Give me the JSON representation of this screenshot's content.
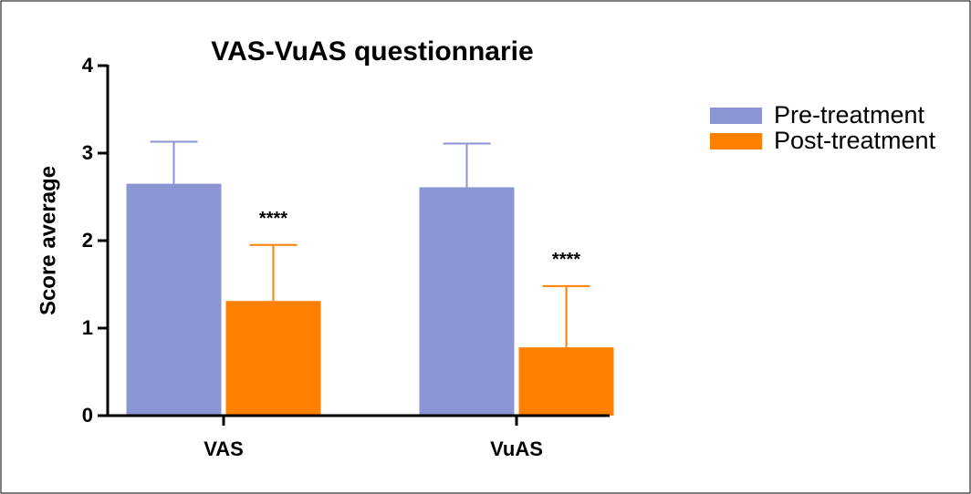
{
  "chart_data": {
    "type": "bar",
    "title": "VAS-VuAS questionnarie",
    "y_label": "Score average",
    "categories": [
      "VAS",
      "VuAS"
    ],
    "series": [
      {
        "name": "Pre-treatment",
        "color": "#8c95d4",
        "values": [
          2.65,
          2.61
        ],
        "errors": [
          0.48,
          0.5
        ]
      },
      {
        "name": "Post-treatment",
        "color": "#ff8000",
        "values": [
          1.31,
          0.78
        ],
        "errors": [
          0.64,
          0.7
        ],
        "annotations": [
          "****",
          "****"
        ]
      }
    ],
    "ylim": [
      0,
      4
    ],
    "yticks": [
      0,
      1,
      2,
      3,
      4
    ],
    "legend": "right"
  }
}
